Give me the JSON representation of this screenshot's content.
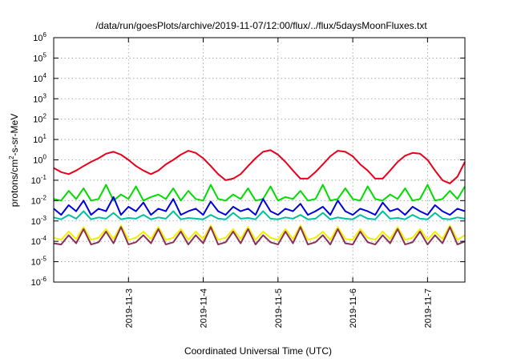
{
  "chart_data": {
    "type": "line",
    "title": "/data/run/goesPlots/archive/2019-11-07/12:00/flux/../flux/5daysMoonFluxes.txt",
    "xlabel": "Coordinated Universal Time (UTC)",
    "ylabel_parts": [
      "protons/cm",
      "2",
      "-s-sr-MeV"
    ],
    "yscale": "log",
    "ylim_exp": [
      -6,
      6
    ],
    "xlim_days": [
      0,
      5.5
    ],
    "x_ticks": [
      {
        "day": 1,
        "label": "2019-11-3"
      },
      {
        "day": 2,
        "label": "2019-11-4"
      },
      {
        "day": 3,
        "label": "2019-11-5"
      },
      {
        "day": 4,
        "label": "2019-11-6"
      },
      {
        "day": 5,
        "label": "2019-11-7"
      }
    ],
    "y_ticks": [
      {
        "exp": 6,
        "base": "10",
        "sup": "6"
      },
      {
        "exp": 5,
        "base": "10",
        "sup": "5"
      },
      {
        "exp": 4,
        "base": "10",
        "sup": "4"
      },
      {
        "exp": 3,
        "base": "10",
        "sup": "3"
      },
      {
        "exp": 2,
        "base": "10",
        "sup": "2"
      },
      {
        "exp": 1,
        "base": "10",
        "sup": "1"
      },
      {
        "exp": 0,
        "base": "10",
        "sup": "0"
      },
      {
        "exp": -1,
        "base": "10",
        "sup": "-1"
      },
      {
        "exp": -2,
        "base": "10",
        "sup": "-2"
      },
      {
        "exp": -3,
        "base": "10",
        "sup": "-3"
      },
      {
        "exp": -4,
        "base": "10",
        "sup": "-4"
      },
      {
        "exp": -5,
        "base": "10",
        "sup": "-5"
      },
      {
        "exp": -6,
        "base": "10",
        "sup": "-6"
      }
    ],
    "grid": true,
    "series": [
      {
        "color": "#e8001c",
        "x": [
          0.0,
          0.1,
          0.2,
          0.3,
          0.4,
          0.5,
          0.6,
          0.7,
          0.8,
          0.9,
          1.0,
          1.1,
          1.2,
          1.3,
          1.4,
          1.5,
          1.6,
          1.7,
          1.8,
          1.9,
          2.0,
          2.1,
          2.2,
          2.3,
          2.4,
          2.5,
          2.6,
          2.7,
          2.8,
          2.9,
          3.0,
          3.1,
          3.2,
          3.3,
          3.4,
          3.5,
          3.6,
          3.7,
          3.8,
          3.9,
          4.0,
          4.1,
          4.2,
          4.3,
          4.4,
          4.5,
          4.6,
          4.7,
          4.8,
          4.9,
          5.0,
          5.1,
          5.2,
          5.3,
          5.4,
          5.5
        ],
        "y": [
          0.4,
          0.25,
          0.2,
          0.3,
          0.5,
          0.8,
          1.2,
          2.0,
          2.5,
          1.8,
          1.0,
          0.5,
          0.3,
          0.2,
          0.3,
          0.6,
          1.0,
          1.8,
          2.8,
          2.2,
          1.2,
          0.5,
          0.2,
          0.1,
          0.12,
          0.2,
          0.5,
          1.2,
          2.5,
          3.0,
          1.8,
          0.8,
          0.3,
          0.12,
          0.12,
          0.25,
          0.6,
          1.5,
          2.8,
          2.5,
          1.5,
          0.6,
          0.3,
          0.12,
          0.12,
          0.3,
          0.8,
          1.6,
          2.2,
          2.0,
          1.0,
          0.3,
          0.1,
          0.07,
          0.15,
          0.8
        ]
      },
      {
        "color": "#00dd00",
        "x": [
          0.0,
          0.1,
          0.2,
          0.3,
          0.4,
          0.5,
          0.6,
          0.7,
          0.8,
          0.9,
          1.0,
          1.1,
          1.2,
          1.3,
          1.4,
          1.5,
          1.6,
          1.7,
          1.8,
          1.9,
          2.0,
          2.1,
          2.2,
          2.3,
          2.4,
          2.5,
          2.6,
          2.7,
          2.8,
          2.9,
          3.0,
          3.1,
          3.2,
          3.3,
          3.4,
          3.5,
          3.6,
          3.7,
          3.8,
          3.9,
          4.0,
          4.1,
          4.2,
          4.3,
          4.4,
          4.5,
          4.6,
          4.7,
          4.8,
          4.9,
          5.0,
          5.1,
          5.2,
          5.3,
          5.4,
          5.5
        ],
        "y": [
          0.012,
          0.01,
          0.03,
          0.012,
          0.04,
          0.01,
          0.012,
          0.06,
          0.01,
          0.02,
          0.012,
          0.05,
          0.01,
          0.015,
          0.02,
          0.012,
          0.04,
          0.01,
          0.03,
          0.012,
          0.01,
          0.06,
          0.012,
          0.01,
          0.02,
          0.012,
          0.04,
          0.01,
          0.012,
          0.05,
          0.01,
          0.015,
          0.012,
          0.03,
          0.01,
          0.012,
          0.06,
          0.01,
          0.012,
          0.04,
          0.012,
          0.01,
          0.05,
          0.012,
          0.01,
          0.02,
          0.012,
          0.04,
          0.01,
          0.012,
          0.06,
          0.01,
          0.012,
          0.03,
          0.012,
          0.05
        ]
      },
      {
        "color": "#0000dd",
        "x": [
          0.0,
          0.1,
          0.2,
          0.3,
          0.4,
          0.5,
          0.6,
          0.7,
          0.8,
          0.9,
          1.0,
          1.1,
          1.2,
          1.3,
          1.4,
          1.5,
          1.6,
          1.7,
          1.8,
          1.9,
          2.0,
          2.1,
          2.2,
          2.3,
          2.4,
          2.5,
          2.6,
          2.7,
          2.8,
          2.9,
          3.0,
          3.1,
          3.2,
          3.3,
          3.4,
          3.5,
          3.6,
          3.7,
          3.8,
          3.9,
          4.0,
          4.1,
          4.2,
          4.3,
          4.4,
          4.5,
          4.6,
          4.7,
          4.8,
          4.9,
          5.0,
          5.1,
          5.2,
          5.3,
          5.4,
          5.5
        ],
        "y": [
          0.004,
          0.002,
          0.006,
          0.003,
          0.01,
          0.002,
          0.004,
          0.003,
          0.015,
          0.002,
          0.005,
          0.003,
          0.008,
          0.002,
          0.004,
          0.003,
          0.012,
          0.002,
          0.003,
          0.004,
          0.002,
          0.009,
          0.003,
          0.002,
          0.005,
          0.003,
          0.004,
          0.002,
          0.012,
          0.003,
          0.002,
          0.004,
          0.003,
          0.007,
          0.002,
          0.003,
          0.005,
          0.002,
          0.01,
          0.003,
          0.002,
          0.004,
          0.003,
          0.002,
          0.008,
          0.003,
          0.004,
          0.002,
          0.005,
          0.003,
          0.002,
          0.006,
          0.003,
          0.002,
          0.004,
          0.003
        ]
      },
      {
        "color": "#00c0a0",
        "x": [
          0.0,
          0.1,
          0.2,
          0.3,
          0.4,
          0.5,
          0.6,
          0.7,
          0.8,
          0.9,
          1.0,
          1.1,
          1.2,
          1.3,
          1.4,
          1.5,
          1.6,
          1.7,
          1.8,
          1.9,
          2.0,
          2.1,
          2.2,
          2.3,
          2.4,
          2.5,
          2.6,
          2.7,
          2.8,
          2.9,
          3.0,
          3.1,
          3.2,
          3.3,
          3.4,
          3.5,
          3.6,
          3.7,
          3.8,
          3.9,
          4.0,
          4.1,
          4.2,
          4.3,
          4.4,
          4.5,
          4.6,
          4.7,
          4.8,
          4.9,
          5.0,
          5.1,
          5.2,
          5.3,
          5.4,
          5.5
        ],
        "y": [
          0.0015,
          0.0012,
          0.002,
          0.0013,
          0.003,
          0.0012,
          0.0015,
          0.0013,
          0.0025,
          0.0012,
          0.0014,
          0.0013,
          0.002,
          0.0012,
          0.0015,
          0.0013,
          0.003,
          0.0012,
          0.0014,
          0.0013,
          0.0012,
          0.002,
          0.0013,
          0.0012,
          0.0025,
          0.0013,
          0.0014,
          0.0012,
          0.003,
          0.0013,
          0.0012,
          0.0015,
          0.0013,
          0.002,
          0.0012,
          0.0013,
          0.0025,
          0.0012,
          0.0015,
          0.0013,
          0.0012,
          0.002,
          0.0013,
          0.0012,
          0.003,
          0.0013,
          0.0014,
          0.0012,
          0.002,
          0.0013,
          0.0012,
          0.0025,
          0.0013,
          0.0012,
          0.0015,
          0.0013
        ]
      },
      {
        "color": "#f0f000",
        "x": [
          0.0,
          0.1,
          0.2,
          0.3,
          0.4,
          0.5,
          0.6,
          0.7,
          0.8,
          0.9,
          1.0,
          1.1,
          1.2,
          1.3,
          1.4,
          1.5,
          1.6,
          1.7,
          1.8,
          1.9,
          2.0,
          2.1,
          2.2,
          2.3,
          2.4,
          2.5,
          2.6,
          2.7,
          2.8,
          2.9,
          3.0,
          3.1,
          3.2,
          3.3,
          3.4,
          3.5,
          3.6,
          3.7,
          3.8,
          3.9,
          4.0,
          4.1,
          4.2,
          4.3,
          4.4,
          4.5,
          4.6,
          4.7,
          4.8,
          4.9,
          5.0,
          5.1,
          5.2,
          5.3,
          5.4,
          5.5
        ],
        "y": [
          0.00015,
          0.00012,
          0.0003,
          0.00013,
          0.0005,
          0.00012,
          0.00015,
          0.0004,
          0.00013,
          0.0006,
          0.00012,
          0.00015,
          0.0003,
          0.00013,
          0.0005,
          0.00012,
          0.00015,
          0.0004,
          0.00012,
          0.0003,
          0.00013,
          0.0006,
          0.00012,
          0.00015,
          0.0004,
          0.00013,
          0.0005,
          0.00012,
          0.0003,
          0.00015,
          0.00012,
          0.0004,
          0.00013,
          0.0006,
          0.00012,
          0.00015,
          0.0003,
          0.00012,
          0.0005,
          0.00013,
          0.00012,
          0.0004,
          0.00015,
          0.00012,
          0.0003,
          0.00013,
          0.0005,
          0.00012,
          0.00015,
          0.0004,
          0.00012,
          0.0003,
          0.00013,
          0.0006,
          0.00012,
          0.0002
        ]
      },
      {
        "color": "#8b2f5a",
        "x": [
          0.0,
          0.1,
          0.2,
          0.3,
          0.4,
          0.5,
          0.6,
          0.7,
          0.8,
          0.9,
          1.0,
          1.1,
          1.2,
          1.3,
          1.4,
          1.5,
          1.6,
          1.7,
          1.8,
          1.9,
          2.0,
          2.1,
          2.2,
          2.3,
          2.4,
          2.5,
          2.6,
          2.7,
          2.8,
          2.9,
          3.0,
          3.1,
          3.2,
          3.3,
          3.4,
          3.5,
          3.6,
          3.7,
          3.8,
          3.9,
          4.0,
          4.1,
          4.2,
          4.3,
          4.4,
          4.5,
          4.6,
          4.7,
          4.8,
          4.9,
          5.0,
          5.1,
          5.2,
          5.3,
          5.4,
          5.5
        ],
        "y": [
          8e-05,
          7e-05,
          0.0002,
          8e-05,
          0.0004,
          7e-05,
          9e-05,
          0.0003,
          8e-05,
          0.0005,
          7e-05,
          9e-05,
          0.0002,
          8e-05,
          0.0004,
          7e-05,
          9e-05,
          0.0003,
          7e-05,
          0.0002,
          8e-05,
          0.0005,
          7e-05,
          9e-05,
          0.0003,
          8e-05,
          0.0004,
          7e-05,
          0.0002,
          9e-05,
          7e-05,
          0.0003,
          8e-05,
          0.0005,
          7e-05,
          9e-05,
          0.0002,
          7e-05,
          0.0004,
          8e-05,
          7e-05,
          0.0003,
          9e-05,
          7e-05,
          0.0002,
          8e-05,
          0.0004,
          7e-05,
          9e-05,
          0.0003,
          7e-05,
          0.0002,
          8e-05,
          0.0005,
          7e-05,
          0.0001
        ]
      }
    ]
  }
}
